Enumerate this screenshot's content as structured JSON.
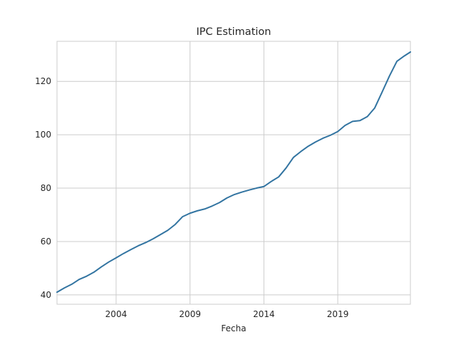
{
  "chart_data": {
    "type": "line",
    "title": "IPC Estimation",
    "xlabel": "Fecha",
    "ylabel": "",
    "grid": true,
    "legend": "none",
    "xlim": [
      "2000-01-01",
      "2023-12-01"
    ],
    "ylim": [
      36.5,
      135.0
    ],
    "x_ticks": [
      "2004",
      "2009",
      "2014",
      "2019"
    ],
    "x_tick_dates": [
      "2004-01-01",
      "2009-01-01",
      "2014-01-01",
      "2019-01-01"
    ],
    "y_ticks": [
      40,
      60,
      80,
      100,
      120
    ],
    "series_color": "#3274a1",
    "series": [
      {
        "x": [
          "2000-01-01",
          "2000-07-01",
          "2001-01-01",
          "2001-07-01",
          "2002-01-01",
          "2002-07-01",
          "2003-01-01",
          "2003-07-01",
          "2004-01-01",
          "2004-07-01",
          "2005-01-01",
          "2005-07-01",
          "2006-01-01",
          "2006-07-01",
          "2007-01-01",
          "2007-07-01",
          "2008-01-01",
          "2008-07-01",
          "2009-01-01",
          "2009-07-01",
          "2010-01-01",
          "2010-07-01",
          "2011-01-01",
          "2011-07-01",
          "2012-01-01",
          "2012-07-01",
          "2013-01-01",
          "2013-07-01",
          "2014-01-01",
          "2014-07-01",
          "2015-01-01",
          "2015-07-01",
          "2016-01-01",
          "2016-07-01",
          "2017-01-01",
          "2017-07-01",
          "2018-01-01",
          "2018-07-01",
          "2019-01-01",
          "2019-07-01",
          "2020-01-01",
          "2020-07-01",
          "2021-01-01",
          "2021-07-01",
          "2022-01-01",
          "2022-07-01",
          "2023-01-01",
          "2023-07-01",
          "2023-12-01"
        ],
        "values": [
          41.0,
          42.6,
          44.0,
          45.8,
          47.0,
          48.5,
          50.5,
          52.3,
          53.9,
          55.5,
          57.0,
          58.4,
          59.6,
          61.0,
          62.6,
          64.2,
          66.4,
          69.3,
          70.6,
          71.5,
          72.2,
          73.3,
          74.6,
          76.3,
          77.6,
          78.5,
          79.3,
          80.0,
          80.6,
          82.5,
          84.2,
          87.5,
          91.5,
          93.7,
          95.7,
          97.3,
          98.7,
          99.8,
          101.2,
          103.5,
          105.0,
          105.3,
          106.8,
          110.0,
          116.0,
          122.0,
          127.5,
          129.5,
          131.0
        ]
      }
    ]
  }
}
